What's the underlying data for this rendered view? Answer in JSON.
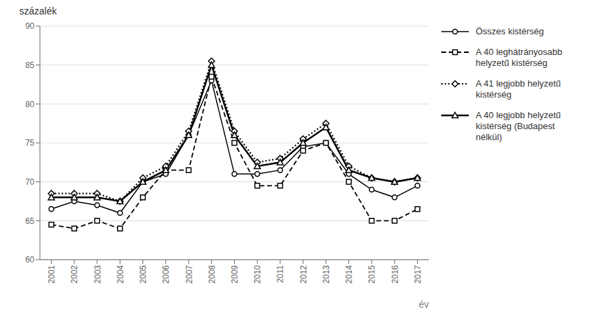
{
  "chart_data": {
    "type": "line",
    "xlabel": "év",
    "ylabel": "százalék",
    "x": [
      2001,
      2002,
      2003,
      2004,
      2005,
      2006,
      2007,
      2008,
      2009,
      2010,
      2011,
      2012,
      2013,
      2014,
      2015,
      2016,
      2017
    ],
    "series": [
      {
        "name": "Összes kistérség",
        "color": "#000000",
        "marker": "circle",
        "line_style": "solid",
        "values": [
          66.5,
          67.5,
          67.0,
          66.0,
          70.0,
          71.0,
          76.0,
          83.0,
          71.0,
          71.0,
          71.5,
          74.5,
          75.0,
          71.0,
          69.0,
          68.0,
          69.5
        ]
      },
      {
        "name": "A 40 leghátrányosabb\nhelyzetű kistérség",
        "color": "#000000",
        "marker": "square",
        "line_style": "dashed",
        "values": [
          64.5,
          64.0,
          65.0,
          64.0,
          68.0,
          71.5,
          71.5,
          83.5,
          75.0,
          69.5,
          69.5,
          74.0,
          75.0,
          70.0,
          65.0,
          65.0,
          66.5
        ]
      },
      {
        "name": "A 41 legjobb helyzetű\nkistérség",
        "color": "#000000",
        "marker": "diamond",
        "line_style": "dotted",
        "values": [
          68.5,
          68.5,
          68.5,
          67.5,
          70.5,
          72.0,
          76.5,
          85.5,
          76.5,
          72.5,
          73.0,
          75.5,
          77.5,
          72.0,
          70.5,
          70.0,
          70.5
        ]
      },
      {
        "name": "A 40 legjobb helyzetű\nkistérség (Budapest\nnélkül)",
        "color": "#000000",
        "marker": "triangle",
        "line_style": "solid",
        "values": [
          68.0,
          68.0,
          68.0,
          67.5,
          70.0,
          71.5,
          76.0,
          85.0,
          76.0,
          72.0,
          72.5,
          75.0,
          77.0,
          71.5,
          70.5,
          70.0,
          70.5
        ]
      }
    ],
    "xlim": [
      2000.5,
      2017.5
    ],
    "xticks": [
      2001,
      2002,
      2003,
      2004,
      2005,
      2006,
      2007,
      2008,
      2009,
      2010,
      2011,
      2012,
      2013,
      2014,
      2015,
      2016,
      2017
    ],
    "ylim": [
      60,
      90
    ],
    "yticks": [
      60,
      65,
      70,
      75,
      80,
      85,
      90
    ],
    "grid": true,
    "legend": "right"
  }
}
